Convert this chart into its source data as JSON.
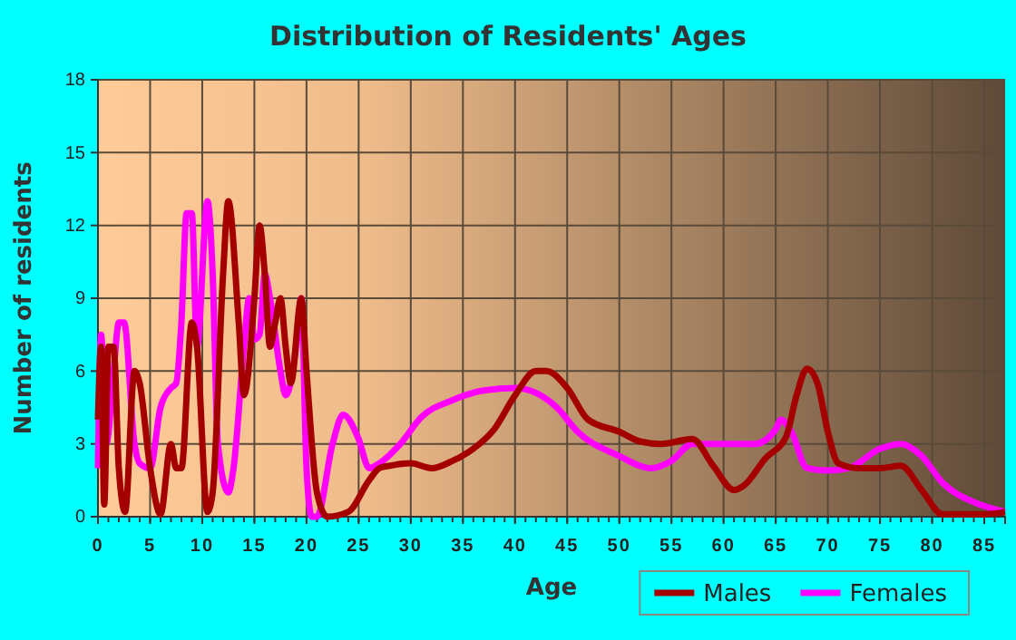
{
  "chart_data": {
    "type": "line",
    "title": "Distribution of Residents' Ages",
    "xlabel": "Age",
    "ylabel": "Number of residents",
    "xlim": [
      0,
      87
    ],
    "xticks": [
      0,
      5,
      10,
      15,
      20,
      25,
      30,
      35,
      40,
      45,
      50,
      55,
      60,
      65,
      70,
      75,
      80,
      85
    ],
    "ylim": [
      0,
      18
    ],
    "yticks": [
      0,
      3,
      6,
      9,
      12,
      15,
      18
    ],
    "grid": true,
    "legend": "bottom right",
    "marker": "none",
    "series": [
      {
        "name": "Males",
        "color": "#a50000",
        "x": [
          0,
          0.3,
          0.6,
          1,
          1.5,
          2,
          2.6,
          3.5,
          4,
          5,
          6,
          7,
          7.5,
          8,
          9,
          9.5,
          10.5,
          11,
          12,
          12.5,
          13.5,
          14,
          15,
          15.5,
          16,
          16.5,
          17,
          17.5,
          18,
          18.5,
          19.5,
          20,
          21,
          22,
          24,
          26,
          27,
          28,
          30,
          32,
          34,
          36,
          38,
          40,
          42,
          43,
          45,
          47,
          50,
          52,
          54,
          57,
          59,
          61,
          62,
          64,
          66,
          67,
          68,
          69,
          70,
          71,
          73,
          75,
          77,
          79,
          81,
          85,
          87
        ],
        "values": [
          4,
          7,
          0.5,
          7,
          7,
          2,
          0.2,
          6,
          5.5,
          2,
          0.1,
          3,
          2,
          2,
          8,
          7,
          0.2,
          1,
          10,
          13,
          8,
          5,
          9,
          12,
          10,
          7,
          8,
          9,
          7,
          5.5,
          9,
          6,
          1,
          0,
          0.2,
          1.5,
          2,
          2.1,
          2.2,
          2,
          2.3,
          2.8,
          3.6,
          5,
          6,
          6,
          5.3,
          4,
          3.5,
          3.1,
          3,
          3.2,
          2.1,
          1.1,
          1.3,
          2.4,
          3.3,
          5,
          6.1,
          5.5,
          3.5,
          2.2,
          2,
          2,
          2.1,
          1.1,
          0.1,
          0.1,
          0.2
        ]
      },
      {
        "name": "Females",
        "color": "#ff00ff",
        "x": [
          0,
          0.3,
          0.8,
          1.5,
          2,
          2.5,
          3.5,
          4,
          5,
          6,
          7,
          7.5,
          8,
          8.5,
          9,
          9.5,
          10.5,
          11,
          11.5,
          12.5,
          13,
          14,
          14.5,
          15,
          15.5,
          16,
          16.5,
          17.5,
          18,
          19,
          19.5,
          20,
          20.5,
          21,
          22.5,
          23.5,
          25,
          26,
          27,
          29,
          31,
          34,
          37,
          40,
          42,
          44,
          46,
          50,
          53,
          55,
          57,
          60,
          63,
          65,
          65.5,
          66.5,
          68,
          70,
          72,
          75,
          77,
          79,
          81,
          84,
          87
        ],
        "values": [
          2,
          7.5,
          3,
          6,
          8,
          8,
          3,
          2.2,
          2,
          4.5,
          5.3,
          5.5,
          8,
          12.5,
          12.5,
          7,
          13,
          10,
          3,
          1,
          2,
          7,
          9,
          7.3,
          7.5,
          10,
          9,
          6,
          5,
          7,
          9,
          2,
          0,
          0,
          3,
          4.2,
          3.2,
          2,
          2.2,
          3,
          4.1,
          4.8,
          5.2,
          5.3,
          5.1,
          4.5,
          3.5,
          2.5,
          2,
          2.3,
          3,
          3,
          3,
          3.6,
          4,
          3.5,
          2,
          1.9,
          2,
          2.8,
          3,
          2.5,
          1.4,
          0.6,
          0.2
        ]
      }
    ]
  }
}
